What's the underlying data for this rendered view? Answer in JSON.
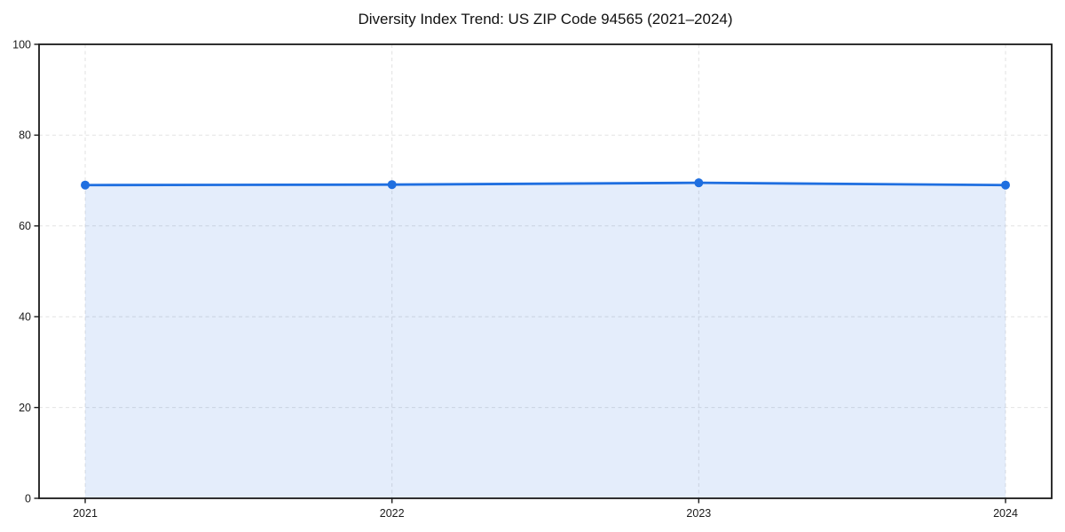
{
  "page": {
    "background": "#ffffff"
  },
  "chart_data": {
    "type": "line",
    "title": "Diversity Index Trend: US ZIP Code 94565 (2021–2024)",
    "x": [
      "2021",
      "2022",
      "2023",
      "2024"
    ],
    "series": [
      {
        "name": "Diversity Index",
        "values": [
          69.0,
          69.1,
          69.5,
          69.0
        ]
      }
    ],
    "ylim": [
      0,
      100
    ],
    "yticks": [
      0,
      20,
      40,
      60,
      80,
      100
    ],
    "xlabel": "",
    "ylabel": "",
    "grid": "dashed",
    "legend_position": "none",
    "area_fill": true,
    "style": {
      "line_color": "#1f6fe0",
      "marker_color": "#1f6fe0",
      "fill_color": "rgba(31, 111, 224, 0.12)",
      "grid_color": "#e2e2e2",
      "spine_color": "#1a1a1a",
      "tick_color": "#1a1a1a",
      "text_color": "#1a1a1a"
    }
  }
}
